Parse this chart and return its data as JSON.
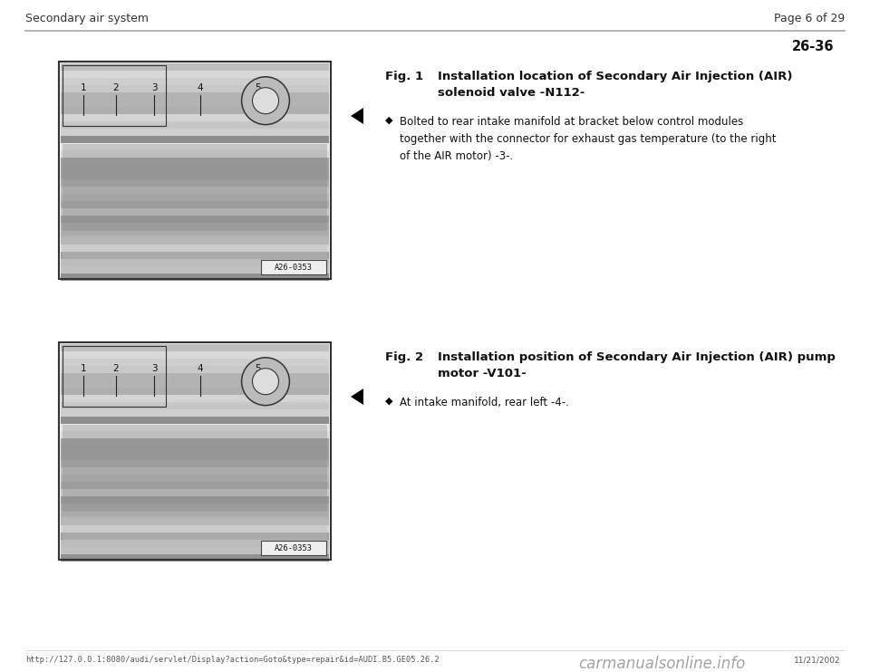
{
  "bg_color": "#ffffff",
  "header_bg": "#ffffff",
  "header_left": "Secondary air system",
  "header_right": "Page 6 of 29",
  "page_number": "26-36",
  "fig1_title": "Fig. 1",
  "fig1_subtitle_line1": "Installation location of Secondary Air Injection (AIR)",
  "fig1_subtitle_line2": "solenoid valve -N112-",
  "fig1_bullet": "Bolted to rear intake manifold at bracket below control modules\ntogether with the connector for exhaust gas temperature (to the right\nof the AIR motor) -3-.",
  "fig2_title": "Fig. 2",
  "fig2_subtitle_line1": "Installation position of Secondary Air Injection (AIR) pump",
  "fig2_subtitle_line2": "motor -V101-",
  "fig2_bullet": "At intake manifold, rear left -4-.",
  "footer_url": "http://127.0.0.1:8080/audi/servlet/Display?action=Goto&type=repair&id=AUDI.B5.GE05.26.2",
  "footer_date": "11/21/2002",
  "footer_watermark": "carmanualsonline.info",
  "image_label": "A26-0353",
  "text_color": "#111111",
  "header_line_color": "#aaaaaa",
  "img_border_color": "#333333",
  "img_numbers": [
    "1",
    "2",
    "3",
    "4",
    "5"
  ]
}
